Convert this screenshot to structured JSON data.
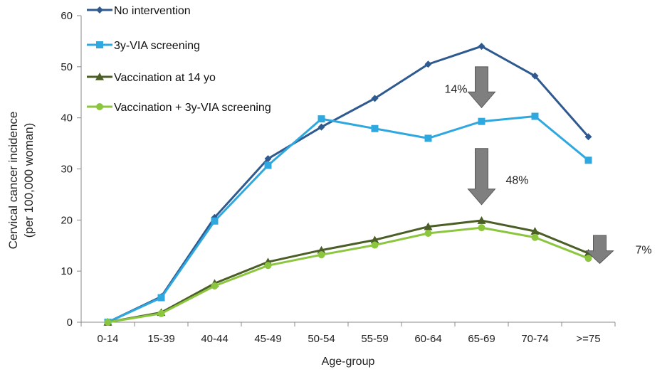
{
  "chart_data": {
    "type": "line",
    "title": "",
    "xlabel": "Age-group",
    "ylabel_line1": "Cervical cancer incidence",
    "ylabel_line2": "(per 100,000 woman)",
    "ylim": [
      0,
      60
    ],
    "yticks": [
      0,
      10,
      20,
      30,
      40,
      50,
      60
    ],
    "yticks_labels": [
      "0",
      "10",
      "20",
      "30",
      "40",
      "50",
      "60"
    ],
    "grid": false,
    "legend_position": "top-left",
    "categories": [
      "0-14",
      "15-39",
      "40-44",
      "45-49",
      "50-54",
      "55-59",
      "60-64",
      "65-69",
      "70-74",
      ">=75"
    ],
    "series": [
      {
        "name": "No intervention",
        "color": "#2e5a8f",
        "marker": "diamond",
        "values": [
          0,
          5,
          20.5,
          32,
          38.2,
          43.8,
          50.5,
          54,
          48.2,
          36.3
        ]
      },
      {
        "name": "3y-VIA screening",
        "color": "#2fa8df",
        "marker": "square",
        "values": [
          0,
          4.8,
          19.8,
          30.7,
          39.8,
          37.9,
          36,
          39.3,
          40.3,
          31.7
        ]
      },
      {
        "name": "Vaccination at 14 yo",
        "color": "#4a5e26",
        "marker": "triangle",
        "values": [
          0,
          1.9,
          7.6,
          11.8,
          14.1,
          16.1,
          18.7,
          19.9,
          17.8,
          13.5
        ]
      },
      {
        "name": "Vaccination + 3y-VIA screening",
        "color": "#8cc63f",
        "marker": "circle",
        "values": [
          0,
          1.7,
          7.1,
          11.1,
          13.2,
          15.1,
          17.4,
          18.5,
          16.6,
          12.5
        ]
      }
    ],
    "annotations": [
      {
        "text": "14%",
        "category": "65-69",
        "y_from": 50,
        "y_to": 42
      },
      {
        "text": "48%",
        "category": "65-69",
        "y_from": 34,
        "y_to": 23
      },
      {
        "text": "7%",
        "category": ">=75",
        "y_from": 17,
        "y_to": 11.5
      }
    ],
    "arrow_color": "#7f7f7f"
  }
}
